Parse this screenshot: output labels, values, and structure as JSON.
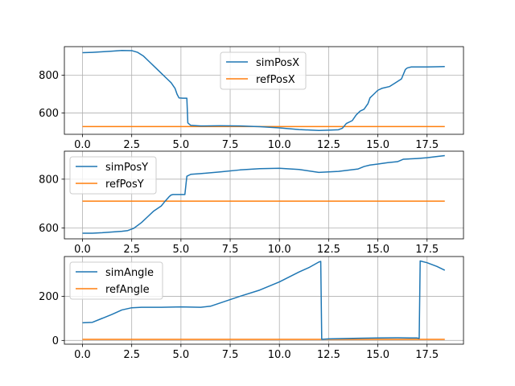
{
  "colors": {
    "sim": "#1f77b4",
    "ref": "#ff7f0e",
    "grid": "#b0b0b0"
  },
  "chart_data": [
    {
      "type": "line",
      "title": "",
      "xlabel": "",
      "ylabel": "",
      "xlim": [
        -0.92,
        19.35
      ],
      "ylim": [
        488,
        950
      ],
      "xticks": [
        0.0,
        2.5,
        5.0,
        7.5,
        10.0,
        12.5,
        15.0,
        17.5
      ],
      "xtick_labels": [
        "0.0",
        "2.5",
        "5.0",
        "7.5",
        "10.0",
        "12.5",
        "15.0",
        "17.5"
      ],
      "yticks": [
        600,
        800
      ],
      "ytick_labels": [
        "600",
        "800"
      ],
      "grid": true,
      "legend_position": "top-center",
      "series": [
        {
          "name": "simPosX",
          "color": "#1f77b4",
          "points": [
            [
              0,
              918
            ],
            [
              0.5,
              920
            ],
            [
              1.0,
              923
            ],
            [
              1.5,
              926
            ],
            [
              2.0,
              930
            ],
            [
              2.5,
              929
            ],
            [
              2.8,
              920
            ],
            [
              3.1,
              900
            ],
            [
              3.4,
              870
            ],
            [
              3.7,
              840
            ],
            [
              4.0,
              810
            ],
            [
              4.3,
              780
            ],
            [
              4.5,
              760
            ],
            [
              4.7,
              730
            ],
            [
              4.8,
              700
            ],
            [
              4.9,
              680
            ],
            [
              5.1,
              678
            ],
            [
              5.2,
              678
            ],
            [
              5.3,
              678
            ],
            [
              5.35,
              548
            ],
            [
              5.5,
              535
            ],
            [
              6.0,
              532
            ],
            [
              7.0,
              533
            ],
            [
              8.0,
              532
            ],
            [
              9.0,
              528
            ],
            [
              10.0,
              522
            ],
            [
              11.0,
              513
            ],
            [
              12.0,
              508
            ],
            [
              12.6,
              510
            ],
            [
              13.0,
              512
            ],
            [
              13.2,
              520
            ],
            [
              13.4,
              545
            ],
            [
              13.7,
              560
            ],
            [
              13.9,
              590
            ],
            [
              14.1,
              610
            ],
            [
              14.3,
              620
            ],
            [
              14.5,
              650
            ],
            [
              14.6,
              680
            ],
            [
              14.8,
              700
            ],
            [
              15.0,
              720
            ],
            [
              15.2,
              730
            ],
            [
              15.6,
              740
            ],
            [
              15.9,
              760
            ],
            [
              16.2,
              780
            ],
            [
              16.4,
              830
            ],
            [
              16.5,
              838
            ],
            [
              16.7,
              843
            ],
            [
              17.5,
              843
            ],
            [
              18.0,
              844
            ],
            [
              18.4,
              845
            ]
          ]
        },
        {
          "name": "refPosX",
          "color": "#ff7f0e",
          "points": [
            [
              0,
              529
            ],
            [
              18.4,
              529
            ]
          ]
        }
      ]
    },
    {
      "type": "line",
      "title": "",
      "xlabel": "",
      "ylabel": "",
      "xlim": [
        -0.92,
        19.35
      ],
      "ylim": [
        555,
        915
      ],
      "xticks": [
        0.0,
        2.5,
        5.0,
        7.5,
        10.0,
        12.5,
        15.0,
        17.5
      ],
      "xtick_labels": [
        "0.0",
        "2.5",
        "5.0",
        "7.5",
        "10.0",
        "12.5",
        "15.0",
        "17.5"
      ],
      "yticks": [
        600,
        800
      ],
      "ytick_labels": [
        "600",
        "800"
      ],
      "grid": true,
      "legend_position": "top-left",
      "series": [
        {
          "name": "simPosY",
          "color": "#1f77b4",
          "points": [
            [
              0,
              578
            ],
            [
              0.5,
              578
            ],
            [
              1.0,
              580
            ],
            [
              1.5,
              583
            ],
            [
              2.0,
              586
            ],
            [
              2.3,
              589
            ],
            [
              2.6,
              598
            ],
            [
              3.0,
              622
            ],
            [
              3.3,
              645
            ],
            [
              3.6,
              668
            ],
            [
              4.0,
              690
            ],
            [
              4.2,
              710
            ],
            [
              4.4,
              728
            ],
            [
              4.5,
              735
            ],
            [
              4.6,
              737
            ],
            [
              5.2,
              737
            ],
            [
              5.3,
              812
            ],
            [
              5.5,
              820
            ],
            [
              6.0,
              823
            ],
            [
              7.0,
              830
            ],
            [
              8.0,
              838
            ],
            [
              9.0,
              843
            ],
            [
              10.0,
              845
            ],
            [
              11.0,
              840
            ],
            [
              12.0,
              828
            ],
            [
              13.0,
              832
            ],
            [
              14.0,
              842
            ],
            [
              14.3,
              852
            ],
            [
              14.6,
              858
            ],
            [
              15.0,
              862
            ],
            [
              15.5,
              868
            ],
            [
              16.0,
              872
            ],
            [
              16.3,
              882
            ],
            [
              17.0,
              885
            ],
            [
              17.5,
              888
            ],
            [
              18.0,
              893
            ],
            [
              18.4,
              897
            ]
          ]
        },
        {
          "name": "refPosY",
          "color": "#ff7f0e",
          "points": [
            [
              0,
              710
            ],
            [
              18.4,
              710
            ]
          ]
        }
      ]
    },
    {
      "type": "line",
      "title": "",
      "xlabel": "",
      "ylabel": "",
      "xlim": [
        -0.92,
        19.35
      ],
      "ylim": [
        -17,
        380
      ],
      "xticks": [
        0.0,
        2.5,
        5.0,
        7.5,
        10.0,
        12.5,
        15.0,
        17.5
      ],
      "xtick_labels": [
        "0.0",
        "2.5",
        "5.0",
        "7.5",
        "10.0",
        "12.5",
        "15.0",
        "17.5"
      ],
      "yticks": [
        0,
        200
      ],
      "ytick_labels": [
        "0",
        "200"
      ],
      "grid": true,
      "legend_position": "top-left",
      "series": [
        {
          "name": "simAngle",
          "color": "#1f77b4",
          "points": [
            [
              0,
              80
            ],
            [
              0.5,
              82
            ],
            [
              1.0,
              100
            ],
            [
              1.5,
              118
            ],
            [
              2.0,
              138
            ],
            [
              2.5,
              148
            ],
            [
              3.0,
              150
            ],
            [
              4.0,
              150
            ],
            [
              5.0,
              152
            ],
            [
              6.0,
              150
            ],
            [
              6.5,
              155
            ],
            [
              7.0,
              170
            ],
            [
              7.5,
              185
            ],
            [
              8.0,
              200
            ],
            [
              9.0,
              228
            ],
            [
              10.0,
              265
            ],
            [
              11.0,
              310
            ],
            [
              11.5,
              330
            ],
            [
              12.0,
              355
            ],
            [
              12.1,
              358
            ],
            [
              12.15,
              5
            ],
            [
              12.5,
              7
            ],
            [
              13.0,
              8
            ],
            [
              14.0,
              10
            ],
            [
              15.0,
              11
            ],
            [
              16.0,
              12
            ],
            [
              17.0,
              11
            ],
            [
              17.1,
              9
            ],
            [
              17.15,
              360
            ],
            [
              17.5,
              352
            ],
            [
              18.0,
              335
            ],
            [
              18.4,
              318
            ]
          ]
        },
        {
          "name": "refAngle",
          "color": "#ff7f0e",
          "points": [
            [
              0,
              5
            ],
            [
              18.4,
              5
            ]
          ]
        }
      ]
    }
  ]
}
